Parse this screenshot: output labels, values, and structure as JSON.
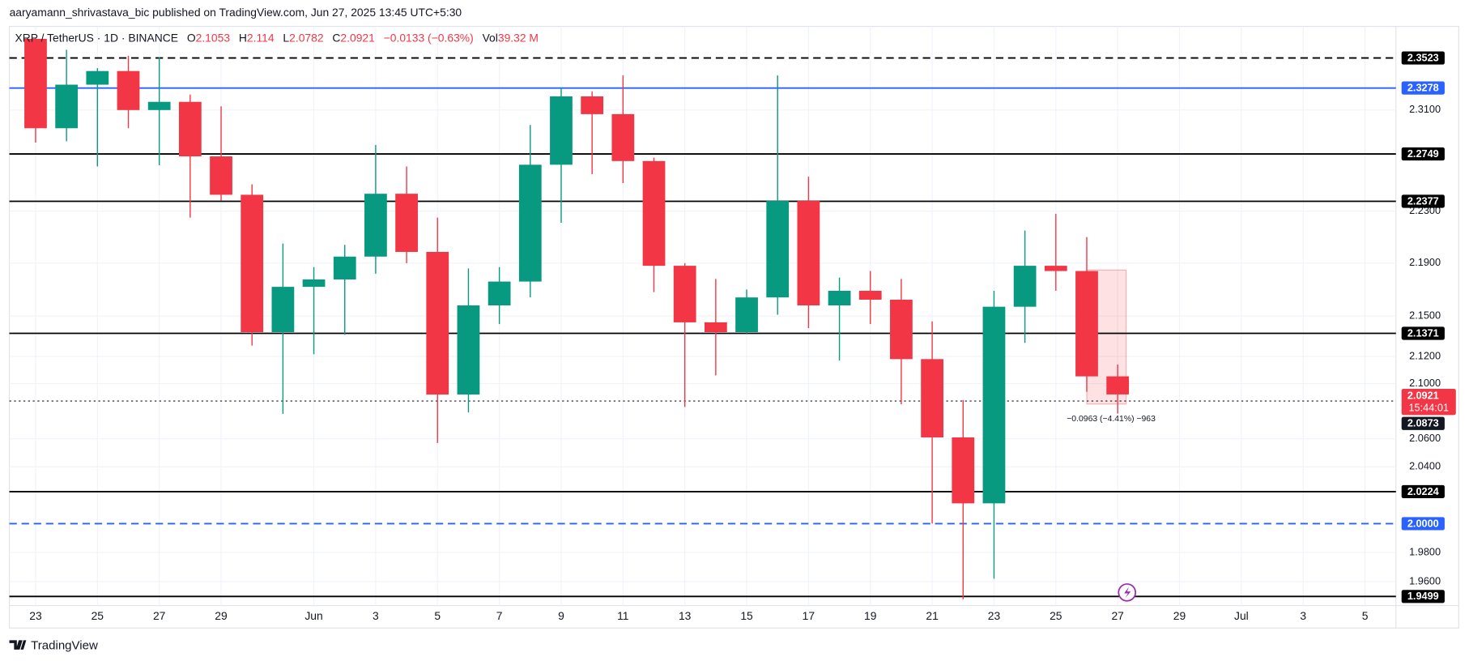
{
  "header": {
    "publisher": "aaryamann_shrivastava_bic published on TradingView.com, Jun 27, 2025 13:45 UTC+5:30"
  },
  "footer": {
    "brand": "TradingView"
  },
  "chart_data": {
    "type": "candlestick",
    "title": "XRP / TetherUS · 1D · BINANCE",
    "ohlc_labels": [
      "O",
      "H",
      "L",
      "C"
    ],
    "change": "−0.0133 (−0.63%)",
    "volume_label": "Vol",
    "volume": "39.32 M",
    "log": true,
    "grid": true,
    "up_color": "#089981",
    "down_color": "#f23645",
    "categories": [
      "23",
      null,
      "25",
      null,
      "27",
      null,
      "29",
      null,
      null,
      "Jun",
      null,
      "3",
      null,
      "5",
      null,
      "7",
      null,
      "9",
      null,
      "11",
      null,
      "13",
      null,
      "15",
      null,
      "17",
      null,
      "19",
      null,
      "21",
      null,
      "23",
      null,
      "25",
      null,
      "27",
      null,
      "29",
      null,
      "Jul",
      null,
      "3",
      null,
      "5",
      null
    ],
    "open": [
      2.368,
      2.2954,
      2.3305,
      2.3416,
      2.31,
      2.3166,
      2.273,
      2.2428,
      2.138,
      2.172,
      2.1776,
      2.195,
      2.2436,
      2.1986,
      2.092,
      2.158,
      2.176,
      2.2664,
      2.321,
      2.3067,
      2.2693,
      2.188,
      2.1453,
      2.138,
      2.164,
      2.238,
      2.158,
      2.169,
      2.1623,
      2.118,
      2.061,
      2.0142,
      2.157,
      2.188,
      2.184,
      2.1053,
      null,
      null,
      null,
      null,
      null,
      null,
      null,
      null,
      null
    ],
    "high": [
      2.38,
      2.359,
      2.344,
      2.354,
      2.353,
      2.3225,
      2.313,
      2.251,
      2.205,
      2.187,
      2.204,
      2.282,
      2.265,
      2.225,
      2.186,
      2.187,
      2.298,
      2.328,
      2.325,
      2.338,
      2.272,
      2.19,
      2.178,
      2.17,
      2.338,
      2.257,
      2.179,
      2.184,
      2.178,
      2.146,
      2.088,
      2.169,
      2.215,
      2.228,
      2.21,
      2.114,
      null,
      null,
      null,
      null,
      null,
      null,
      null,
      null,
      null
    ],
    "low": [
      2.284,
      2.285,
      2.265,
      2.2954,
      2.266,
      2.225,
      2.2382,
      2.128,
      2.078,
      2.1216,
      2.136,
      2.182,
      2.19,
      2.057,
      2.079,
      2.144,
      2.164,
      2.221,
      2.259,
      2.252,
      2.168,
      2.083,
      2.106,
      2.137,
      2.151,
      2.141,
      2.117,
      2.144,
      2.085,
      2.0,
      1.948,
      1.962,
      2.13,
      2.169,
      2.094,
      2.0782,
      null,
      null,
      null,
      null,
      null,
      null,
      null,
      null,
      null
    ],
    "close": [
      2.2954,
      2.3305,
      2.3416,
      2.31,
      2.3166,
      2.273,
      2.2428,
      2.138,
      2.172,
      2.1776,
      2.195,
      2.2436,
      2.1986,
      2.092,
      2.158,
      2.176,
      2.2664,
      2.321,
      2.3067,
      2.2693,
      2.188,
      2.1453,
      2.138,
      2.164,
      2.238,
      2.158,
      2.169,
      2.1623,
      2.118,
      2.061,
      2.0142,
      2.157,
      2.188,
      2.184,
      2.1053,
      2.0921,
      null,
      null,
      null,
      null,
      null,
      null,
      null,
      null,
      null
    ],
    "ylim": [
      1.945,
      2.369
    ],
    "yticks": [
      {
        "value": 1.96,
        "label": "1.9600"
      },
      {
        "value": 1.98,
        "label": "1.9800"
      },
      {
        "value": 2.04,
        "label": "2.0400"
      },
      {
        "value": 2.06,
        "label": "2.0600"
      },
      {
        "value": 2.1,
        "label": "2.1000"
      },
      {
        "value": 2.12,
        "label": "2.1200"
      },
      {
        "value": 2.15,
        "label": "2.1500"
      },
      {
        "value": 2.19,
        "label": "2.1900"
      },
      {
        "value": 2.23,
        "label": "2.2300"
      },
      {
        "value": 2.31,
        "label": "2.3100"
      }
    ],
    "levels": [
      {
        "value": 2.3523,
        "color": "#000000",
        "dashed": true
      },
      {
        "value": 2.3278,
        "color": "#2962ff",
        "dashed": false
      },
      {
        "value": 2.2749,
        "color": "#000000",
        "dashed": false
      },
      {
        "value": 2.2377,
        "color": "#000000",
        "dashed": false
      },
      {
        "value": 2.1371,
        "color": "#000000",
        "dashed": false
      },
      {
        "value": 2.0224,
        "color": "#000000",
        "dashed": false
      },
      {
        "value": 2.0,
        "label": "2.0000",
        "color": "#2962ff",
        "dashed": true
      },
      {
        "value": 1.9499,
        "color": "#000000",
        "dashed": false
      }
    ],
    "marker_level": 2.0873,
    "countdown": "15:44:01",
    "measure_text": "−0.0963 (−4.41%) −963"
  }
}
